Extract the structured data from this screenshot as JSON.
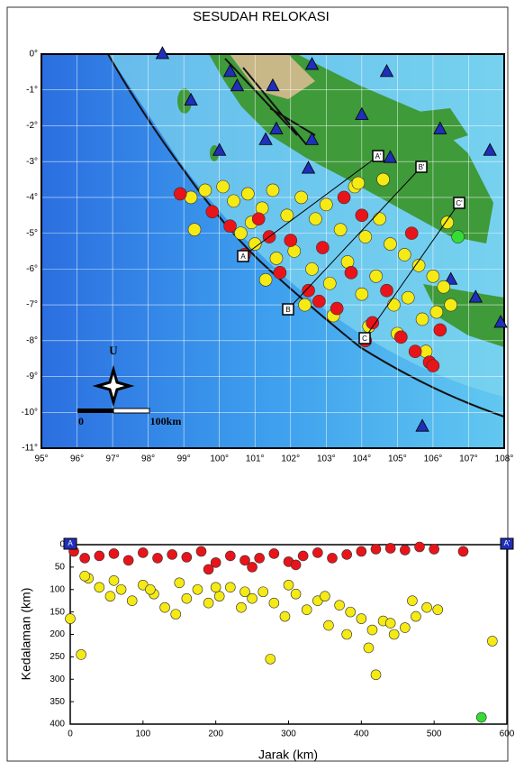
{
  "map": {
    "title": "SESUDAH RELOKASI",
    "lon_ticks": [
      {
        "value": 95,
        "label": "95°"
      },
      {
        "value": 96,
        "label": "96°"
      },
      {
        "value": 97,
        "label": "97°"
      },
      {
        "value": 98,
        "label": "98°"
      },
      {
        "value": 99,
        "label": "99°"
      },
      {
        "value": 100,
        "label": "100°"
      },
      {
        "value": 101,
        "label": "101°"
      },
      {
        "value": 102,
        "label": "102°"
      },
      {
        "value": 103,
        "label": "103°"
      },
      {
        "value": 104,
        "label": "104°"
      },
      {
        "value": 105,
        "label": "105°"
      },
      {
        "value": 106,
        "label": "106°"
      },
      {
        "value": 107,
        "label": "107°"
      },
      {
        "value": 108,
        "label": "108°"
      }
    ],
    "lat_ticks": [
      {
        "value": 0,
        "label": "0°"
      },
      {
        "value": -1,
        "label": "-1°"
      },
      {
        "value": -2,
        "label": "-2°"
      },
      {
        "value": -3,
        "label": "-3°"
      },
      {
        "value": -4,
        "label": "-4°"
      },
      {
        "value": -5,
        "label": "-5°"
      },
      {
        "value": -6,
        "label": "-6°"
      },
      {
        "value": -7,
        "label": "-7°"
      },
      {
        "value": -8,
        "label": "-8°"
      },
      {
        "value": -9,
        "label": "-9°"
      },
      {
        "value": -10,
        "label": "-10°"
      },
      {
        "value": -11,
        "label": "-11°"
      }
    ],
    "lonlim": [
      95,
      108
    ],
    "latlim": [
      0,
      -11
    ],
    "stations": {
      "color": "#1f2fb8",
      "lon": [
        98.4,
        100.3,
        100.5,
        101.5,
        102.6,
        104.7,
        99.2,
        101.3,
        102.6,
        100.0,
        101.6,
        104.0,
        106.2,
        107.6,
        104.8,
        106.5,
        107.2,
        107.9,
        105.7,
        102.5
      ],
      "lat": [
        0.0,
        -0.5,
        -0.9,
        -0.9,
        -0.3,
        -0.5,
        -1.3,
        -2.4,
        -2.4,
        -2.7,
        -2.1,
        -1.7,
        -2.1,
        -2.7,
        -2.9,
        -6.3,
        -6.8,
        -7.5,
        -10.4,
        -3.2
      ]
    },
    "events": [
      {
        "color": "#f5ea14",
        "lon": [
          99.2,
          99.6,
          100.1,
          100.4,
          100.8,
          101.2,
          101.5,
          101.9,
          102.3,
          102.7,
          103.0,
          103.4,
          103.8,
          104.1,
          104.5,
          104.8,
          105.2,
          105.6,
          106.0,
          106.3,
          100.6,
          101.0,
          101.6,
          102.1,
          102.6,
          103.1,
          103.6,
          104.0,
          104.4,
          104.9,
          105.3,
          105.7,
          106.1,
          106.5,
          102.4,
          103.2,
          104.2,
          105.0,
          105.8,
          103.9,
          104.6,
          101.3,
          99.3,
          100.9,
          106.4
        ],
        "lat": [
          -4.0,
          -3.8,
          -3.7,
          -4.1,
          -3.9,
          -4.3,
          -3.8,
          -4.5,
          -4.0,
          -4.6,
          -4.2,
          -4.9,
          -3.7,
          -5.1,
          -4.6,
          -5.3,
          -5.6,
          -5.9,
          -6.2,
          -6.5,
          -5.0,
          -5.3,
          -5.7,
          -5.5,
          -6.0,
          -6.4,
          -5.8,
          -6.7,
          -6.2,
          -7.0,
          -6.8,
          -7.4,
          -7.2,
          -7.0,
          -7.0,
          -7.3,
          -7.6,
          -7.8,
          -8.3,
          -3.6,
          -3.5,
          -6.3,
          -4.9,
          -4.7,
          -4.7
        ]
      },
      {
        "color": "#e8141a",
        "lon": [
          98.9,
          99.8,
          100.3,
          100.7,
          101.1,
          101.7,
          102.0,
          102.5,
          102.9,
          103.3,
          103.7,
          104.3,
          104.7,
          105.1,
          105.5,
          105.9,
          106.2,
          103.5,
          104.0,
          105.4,
          104.1,
          101.4,
          102.8,
          106.0
        ],
        "lat": [
          -3.9,
          -4.4,
          -4.8,
          -5.6,
          -4.6,
          -6.1,
          -5.2,
          -6.6,
          -5.4,
          -7.1,
          -6.1,
          -7.5,
          -6.6,
          -7.9,
          -8.3,
          -8.6,
          -7.7,
          -4.0,
          -4.5,
          -5.0,
          -8.0,
          -5.1,
          -6.9,
          -8.7
        ]
      },
      {
        "color": "#33dd33",
        "lon": [
          106.7
        ],
        "lat": [
          -5.1
        ]
      }
    ],
    "profile_labels": [
      "A",
      "B",
      "C",
      "A'",
      "B'",
      "C'"
    ],
    "compass": "U",
    "scale_labels": [
      "0",
      "100km"
    ]
  },
  "section": {
    "xlabel": "Jarak (km)",
    "ylabel": "Kedalaman (km)",
    "xlim": [
      0,
      600
    ],
    "ylim": [
      0,
      400
    ],
    "xticks": [
      0,
      100,
      200,
      300,
      400,
      500,
      600
    ],
    "yticks": [
      0,
      50,
      100,
      150,
      200,
      250,
      300,
      350,
      400
    ],
    "end_labels": [
      "A",
      "A'"
    ],
    "groups": [
      {
        "color": "#f5ea14",
        "x": [
          0,
          15,
          25,
          40,
          55,
          70,
          85,
          100,
          115,
          130,
          145,
          160,
          175,
          190,
          205,
          220,
          235,
          250,
          265,
          280,
          295,
          310,
          325,
          340,
          355,
          370,
          385,
          400,
          415,
          430,
          445,
          460,
          475,
          490,
          505,
          580,
          420,
          275,
          20,
          60,
          110,
          150,
          200,
          240,
          300,
          350,
          380,
          410,
          440,
          470
        ],
        "depth": [
          165,
          245,
          75,
          95,
          115,
          100,
          125,
          90,
          110,
          140,
          155,
          120,
          100,
          130,
          115,
          95,
          140,
          120,
          105,
          130,
          160,
          110,
          145,
          125,
          180,
          135,
          150,
          165,
          190,
          170,
          200,
          185,
          160,
          140,
          145,
          215,
          290,
          255,
          70,
          80,
          100,
          85,
          95,
          105,
          90,
          115,
          200,
          230,
          175,
          125
        ]
      },
      {
        "color": "#e8141a",
        "x": [
          5,
          20,
          40,
          60,
          80,
          100,
          120,
          140,
          160,
          180,
          200,
          220,
          240,
          260,
          280,
          300,
          320,
          340,
          360,
          380,
          400,
          420,
          440,
          460,
          480,
          500,
          540,
          190,
          250,
          310
        ],
        "depth": [
          15,
          30,
          25,
          20,
          35,
          18,
          30,
          22,
          28,
          15,
          40,
          25,
          35,
          30,
          20,
          38,
          25,
          18,
          30,
          22,
          15,
          10,
          8,
          12,
          5,
          10,
          15,
          55,
          50,
          45
        ]
      },
      {
        "color": "#33dd33",
        "x": [
          565
        ],
        "depth": [
          385
        ]
      }
    ]
  }
}
